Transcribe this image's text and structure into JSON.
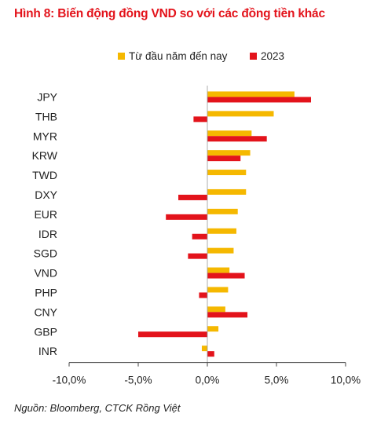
{
  "title": "Hình 8: Biến động đồng VND so với các đồng tiền khác",
  "source": "Nguồn: Bloomberg, CTCK Rồng Việt",
  "chart_data": {
    "type": "bar",
    "orientation": "horizontal",
    "categories": [
      "JPY",
      "THB",
      "MYR",
      "KRW",
      "TWD",
      "DXY",
      "EUR",
      "IDR",
      "SGD",
      "VND",
      "PHP",
      "CNY",
      "GBP",
      "INR"
    ],
    "series": [
      {
        "name": "Từ đầu năm đến nay",
        "color": "#f5b800",
        "values": [
          6.3,
          4.8,
          3.2,
          3.1,
          2.8,
          2.8,
          2.2,
          2.1,
          1.9,
          1.6,
          1.5,
          1.3,
          0.8,
          -0.4
        ]
      },
      {
        "name": "2023",
        "color": "#e3131b",
        "values": [
          7.5,
          -1.0,
          4.3,
          2.4,
          0.0,
          -2.1,
          -3.0,
          -1.1,
          -1.4,
          2.7,
          -0.6,
          2.9,
          -5.0,
          0.5
        ]
      }
    ],
    "xlim": [
      -10,
      10
    ],
    "xticks": [
      "-10,0%",
      "-5,0%",
      "0,0%",
      "5,0%",
      "10,0%"
    ],
    "legend_position": "top",
    "grid": false
  }
}
